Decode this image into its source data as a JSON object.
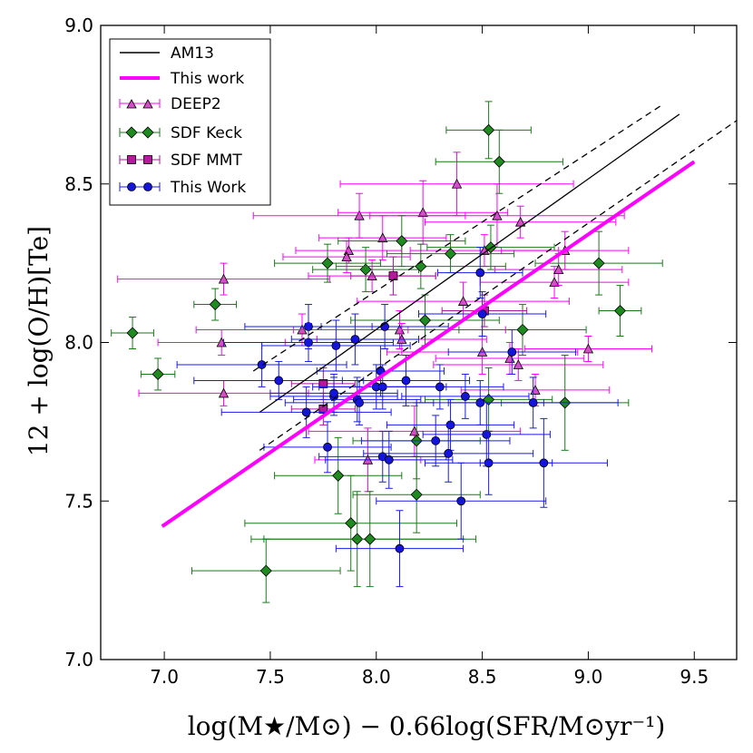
{
  "chart_data": {
    "type": "scatter",
    "xlabel": "log(M★/M⊙) − 0.66log(SFR/M⊙yr⁻¹)",
    "ylabel": "12 + log(O/H)[Te]",
    "xlim": [
      6.7,
      9.7
    ],
    "ylim": [
      7.0,
      9.0
    ],
    "xticks": [
      "7.0",
      "7.5",
      "8.0",
      "8.5",
      "9.0",
      "9.5"
    ],
    "yticks": [
      "7.0",
      "7.5",
      "8.0",
      "8.5",
      "9.0"
    ],
    "lines": [
      {
        "name": "AM13",
        "color": "#000000",
        "style": "solid",
        "x": [
          7.45,
          9.43
        ],
        "y": [
          7.78,
          8.72
        ]
      },
      {
        "name": "AM13 upper",
        "color": "#000000",
        "style": "dashed",
        "x": [
          7.42,
          9.35
        ],
        "y": [
          7.91,
          8.75
        ]
      },
      {
        "name": "AM13 lower",
        "color": "#000000",
        "style": "dashed",
        "x": [
          7.45,
          9.7
        ],
        "y": [
          7.66,
          8.7
        ]
      },
      {
        "name": "This work",
        "color": "#ff00ff",
        "style": "solid",
        "x": [
          6.99,
          9.5
        ],
        "y": [
          7.42,
          8.57
        ]
      }
    ],
    "series": [
      {
        "name": "DEEP2",
        "marker": "triangle",
        "color": "#ff00ff",
        "fill": "#d44ec8",
        "points": [
          {
            "x": 7.28,
            "y": 8.2,
            "xerr": 0.5,
            "yerr": 0.05
          },
          {
            "x": 7.27,
            "y": 8.0,
            "xerr": 0.3,
            "yerr": 0.04
          },
          {
            "x": 7.28,
            "y": 7.84,
            "xerr": 0.4,
            "yerr": 0.04
          },
          {
            "x": 7.65,
            "y": 8.04,
            "xerr": 0.5,
            "yerr": 0.05
          },
          {
            "x": 7.87,
            "y": 8.29,
            "xerr": 0.25,
            "yerr": 0.04
          },
          {
            "x": 7.86,
            "y": 8.27,
            "xerr": 0.3,
            "yerr": 0.05
          },
          {
            "x": 7.92,
            "y": 8.4,
            "xerr": 0.5,
            "yerr": 0.07
          },
          {
            "x": 7.98,
            "y": 8.21,
            "xerr": 0.3,
            "yerr": 0.05
          },
          {
            "x": 8.03,
            "y": 8.33,
            "xerr": 0.3,
            "yerr": 0.07
          },
          {
            "x": 8.11,
            "y": 8.04,
            "xerr": 0.5,
            "yerr": 0.06
          },
          {
            "x": 8.12,
            "y": 8.01,
            "xerr": 0.4,
            "yerr": 0.05
          },
          {
            "x": 8.22,
            "y": 8.41,
            "xerr": 0.4,
            "yerr": 0.1
          },
          {
            "x": 8.18,
            "y": 7.72,
            "xerr": 0.5,
            "yerr": 0.08
          },
          {
            "x": 7.96,
            "y": 7.63,
            "xerr": 0.25,
            "yerr": 0.1
          },
          {
            "x": 8.38,
            "y": 8.5,
            "xerr": 0.55,
            "yerr": 0.1
          },
          {
            "x": 8.41,
            "y": 8.13,
            "xerr": 0.5,
            "yerr": 0.06
          },
          {
            "x": 8.5,
            "y": 7.97,
            "xerr": 0.45,
            "yerr": 0.07
          },
          {
            "x": 8.57,
            "y": 8.4,
            "xerr": 0.6,
            "yerr": 0.1
          },
          {
            "x": 8.63,
            "y": 7.95,
            "xerr": 0.35,
            "yerr": 0.05
          },
          {
            "x": 8.68,
            "y": 8.38,
            "xerr": 0.45,
            "yerr": 0.05
          },
          {
            "x": 8.67,
            "y": 7.93,
            "xerr": 0.4,
            "yerr": 0.05
          },
          {
            "x": 8.75,
            "y": 7.85,
            "xerr": 0.35,
            "yerr": 0.05
          },
          {
            "x": 8.84,
            "y": 8.19,
            "xerr": 0.35,
            "yerr": 0.05
          },
          {
            "x": 8.86,
            "y": 8.23,
            "xerr": 0.3,
            "yerr": 0.05
          },
          {
            "x": 8.89,
            "y": 8.29,
            "xerr": 0.3,
            "yerr": 0.06
          },
          {
            "x": 9.0,
            "y": 7.98,
            "xerr": 0.3,
            "yerr": 0.04
          },
          {
            "x": 8.51,
            "y": 8.29,
            "xerr": 0.35,
            "yerr": 0.05
          }
        ]
      },
      {
        "name": "SDF Keck",
        "marker": "diamond",
        "color": "#1a7a1a",
        "fill": "#1f8a1f",
        "points": [
          {
            "x": 6.85,
            "y": 8.03,
            "xerr": 0.1,
            "yerr": 0.05
          },
          {
            "x": 6.97,
            "y": 7.9,
            "xerr": 0.08,
            "yerr": 0.05
          },
          {
            "x": 7.24,
            "y": 8.12,
            "xerr": 0.1,
            "yerr": 0.05
          },
          {
            "x": 7.77,
            "y": 8.25,
            "xerr": 0.25,
            "yerr": 0.06
          },
          {
            "x": 7.95,
            "y": 8.23,
            "xerr": 0.25,
            "yerr": 0.07
          },
          {
            "x": 8.12,
            "y": 8.32,
            "xerr": 0.3,
            "yerr": 0.08
          },
          {
            "x": 8.21,
            "y": 8.24,
            "xerr": 0.4,
            "yerr": 0.07
          },
          {
            "x": 8.23,
            "y": 8.07,
            "xerr": 0.35,
            "yerr": 0.08
          },
          {
            "x": 8.35,
            "y": 8.28,
            "xerr": 0.3,
            "yerr": 0.06
          },
          {
            "x": 8.53,
            "y": 8.67,
            "xerr": 0.2,
            "yerr": 0.09
          },
          {
            "x": 8.58,
            "y": 8.57,
            "xerr": 0.3,
            "yerr": 0.1
          },
          {
            "x": 8.54,
            "y": 8.3,
            "xerr": 0.3,
            "yerr": 0.07
          },
          {
            "x": 8.69,
            "y": 8.04,
            "xerr": 0.3,
            "yerr": 0.08
          },
          {
            "x": 9.05,
            "y": 8.25,
            "xerr": 0.3,
            "yerr": 0.1
          },
          {
            "x": 9.15,
            "y": 8.1,
            "xerr": 0.1,
            "yerr": 0.08
          },
          {
            "x": 8.89,
            "y": 7.81,
            "xerr": 0.3,
            "yerr": 0.15
          },
          {
            "x": 8.53,
            "y": 7.82,
            "xerr": 0.3,
            "yerr": 0.1
          },
          {
            "x": 8.19,
            "y": 7.69,
            "xerr": 0.3,
            "yerr": 0.12
          },
          {
            "x": 7.82,
            "y": 7.58,
            "xerr": 0.3,
            "yerr": 0.12
          },
          {
            "x": 8.19,
            "y": 7.52,
            "xerr": 0.3,
            "yerr": 0.12
          },
          {
            "x": 7.88,
            "y": 7.43,
            "xerr": 0.5,
            "yerr": 0.15
          },
          {
            "x": 7.91,
            "y": 7.38,
            "xerr": 0.5,
            "yerr": 0.15
          },
          {
            "x": 7.97,
            "y": 7.38,
            "xerr": 0.5,
            "yerr": 0.15
          },
          {
            "x": 7.48,
            "y": 7.28,
            "xerr": 0.35,
            "yerr": 0.1
          }
        ]
      },
      {
        "name": "SDF MMT",
        "marker": "square",
        "color": "#b0169c",
        "fill": "#b8189e",
        "points": [
          {
            "x": 8.08,
            "y": 8.21,
            "xerr": 0.2,
            "yerr": 0.06
          },
          {
            "x": 8.51,
            "y": 8.1,
            "xerr": 0.2,
            "yerr": 0.05
          },
          {
            "x": 7.75,
            "y": 7.87,
            "xerr": 0.15,
            "yerr": 0.05
          },
          {
            "x": 7.75,
            "y": 7.79,
            "xerr": 0.15,
            "yerr": 0.05
          }
        ]
      },
      {
        "name": "This Work",
        "marker": "circle",
        "color": "#1a1aee",
        "fill": "#1414dd",
        "points": [
          {
            "x": 7.46,
            "y": 7.93,
            "xerr": 0.4,
            "yerr": 0.07
          },
          {
            "x": 7.54,
            "y": 7.88,
            "xerr": 0.4,
            "yerr": 0.06
          },
          {
            "x": 7.68,
            "y": 8.05,
            "xerr": 0.3,
            "yerr": 0.07
          },
          {
            "x": 7.68,
            "y": 8.0,
            "xerr": 0.4,
            "yerr": 0.06
          },
          {
            "x": 7.81,
            "y": 7.99,
            "xerr": 0.35,
            "yerr": 0.08
          },
          {
            "x": 7.9,
            "y": 8.01,
            "xerr": 0.3,
            "yerr": 0.08
          },
          {
            "x": 7.67,
            "y": 7.78,
            "xerr": 0.4,
            "yerr": 0.08
          },
          {
            "x": 7.8,
            "y": 7.83,
            "xerr": 0.3,
            "yerr": 0.06
          },
          {
            "x": 7.8,
            "y": 7.84,
            "xerr": 0.3,
            "yerr": 0.06
          },
          {
            "x": 7.91,
            "y": 7.82,
            "xerr": 0.3,
            "yerr": 0.07
          },
          {
            "x": 7.92,
            "y": 7.81,
            "xerr": 0.35,
            "yerr": 0.07
          },
          {
            "x": 7.77,
            "y": 7.67,
            "xerr": 0.3,
            "yerr": 0.08
          },
          {
            "x": 8.0,
            "y": 7.86,
            "xerr": 0.3,
            "yerr": 0.07
          },
          {
            "x": 8.02,
            "y": 7.91,
            "xerr": 0.3,
            "yerr": 0.08
          },
          {
            "x": 8.03,
            "y": 7.86,
            "xerr": 0.3,
            "yerr": 0.07
          },
          {
            "x": 8.04,
            "y": 8.05,
            "xerr": 0.3,
            "yerr": 0.07
          },
          {
            "x": 8.14,
            "y": 7.88,
            "xerr": 0.3,
            "yerr": 0.08
          },
          {
            "x": 8.03,
            "y": 7.64,
            "xerr": 0.3,
            "yerr": 0.08
          },
          {
            "x": 8.06,
            "y": 7.63,
            "xerr": 0.3,
            "yerr": 0.09
          },
          {
            "x": 8.11,
            "y": 7.35,
            "xerr": 0.3,
            "yerr": 0.12
          },
          {
            "x": 8.28,
            "y": 7.69,
            "xerr": 0.35,
            "yerr": 0.08
          },
          {
            "x": 8.3,
            "y": 7.86,
            "xerr": 0.3,
            "yerr": 0.07
          },
          {
            "x": 8.35,
            "y": 7.74,
            "xerr": 0.3,
            "yerr": 0.08
          },
          {
            "x": 8.34,
            "y": 7.65,
            "xerr": 0.4,
            "yerr": 0.09
          },
          {
            "x": 8.4,
            "y": 7.5,
            "xerr": 0.4,
            "yerr": 0.12
          },
          {
            "x": 8.42,
            "y": 7.83,
            "xerr": 0.3,
            "yerr": 0.07
          },
          {
            "x": 8.49,
            "y": 7.81,
            "xerr": 0.3,
            "yerr": 0.07
          },
          {
            "x": 8.49,
            "y": 8.22,
            "xerr": 0.2,
            "yerr": 0.08
          },
          {
            "x": 8.5,
            "y": 8.09,
            "xerr": 0.3,
            "yerr": 0.07
          },
          {
            "x": 8.52,
            "y": 7.71,
            "xerr": 0.3,
            "yerr": 0.1
          },
          {
            "x": 8.53,
            "y": 7.62,
            "xerr": 0.3,
            "yerr": 0.1
          },
          {
            "x": 8.64,
            "y": 7.97,
            "xerr": 0.3,
            "yerr": 0.07
          },
          {
            "x": 8.74,
            "y": 7.81,
            "xerr": 0.4,
            "yerr": 0.08
          },
          {
            "x": 8.79,
            "y": 7.62,
            "xerr": 0.3,
            "yerr": 0.14
          }
        ]
      }
    ]
  }
}
